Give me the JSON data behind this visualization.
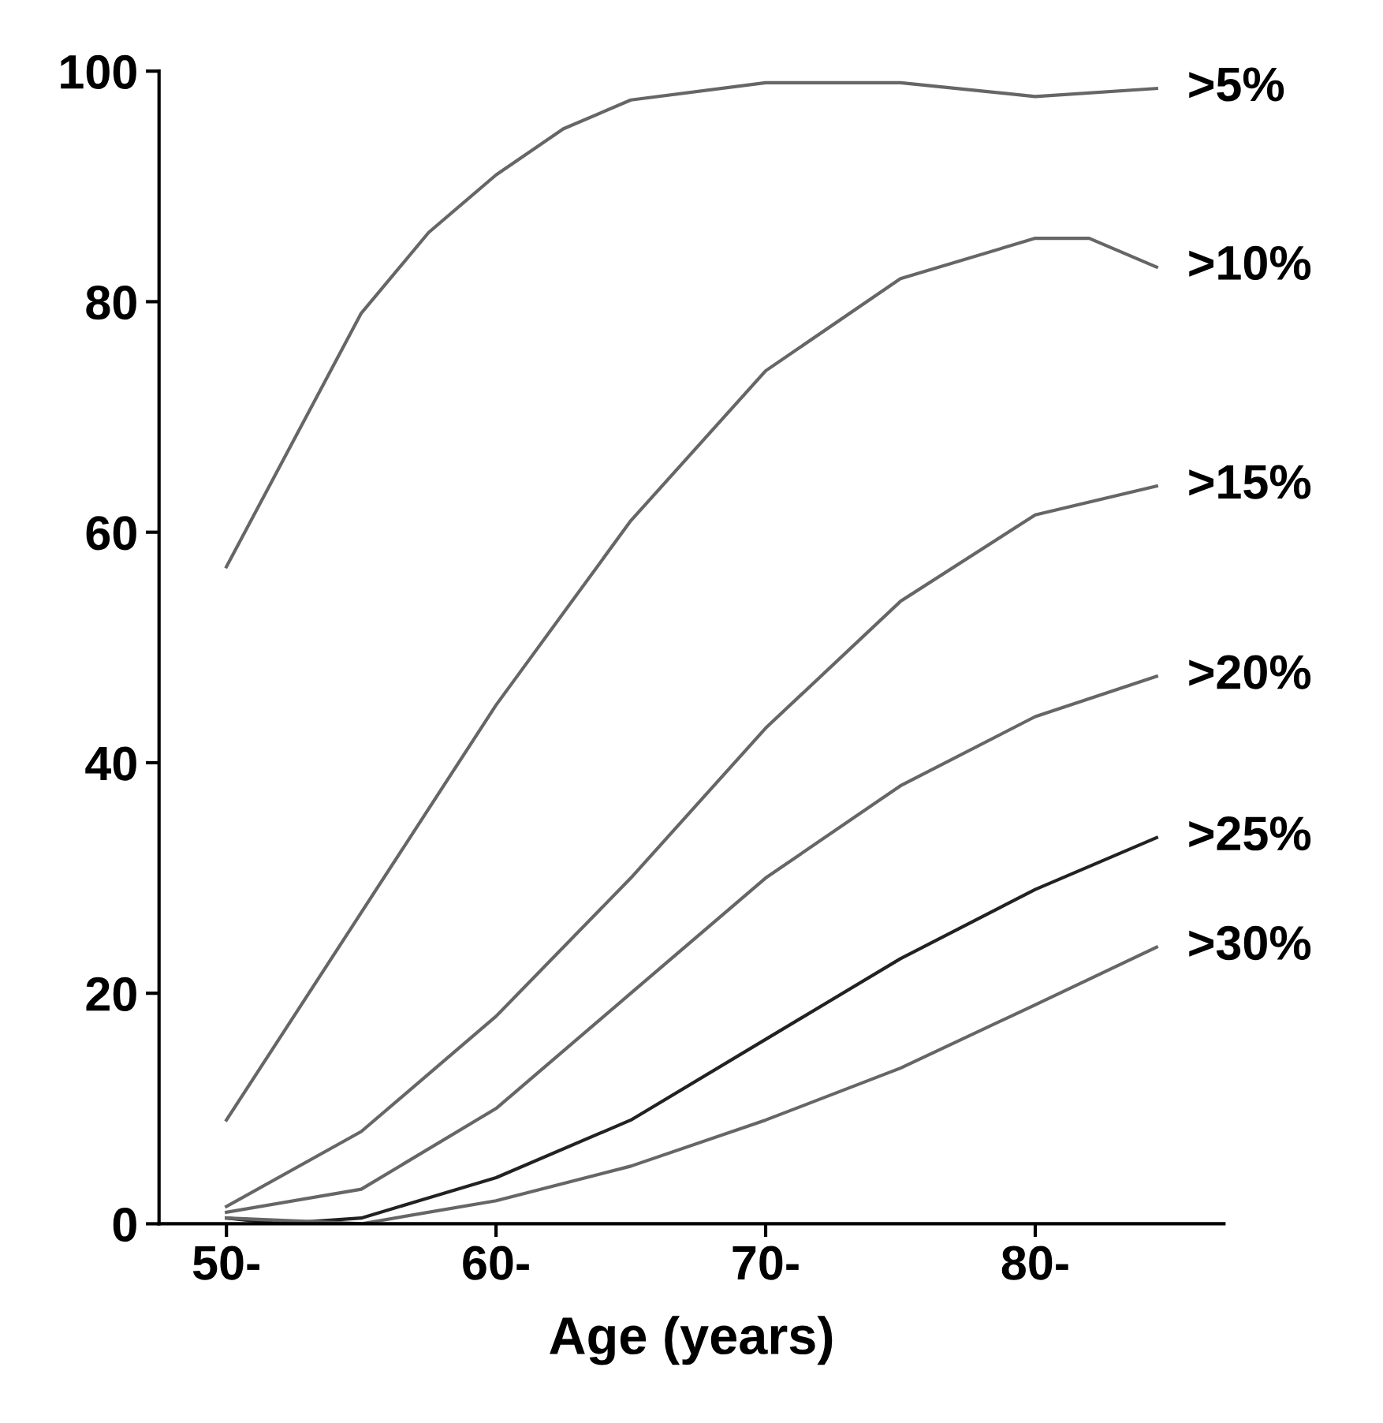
{
  "chart_data": {
    "type": "line",
    "xlabel": "Age (years)",
    "xlim": [
      47.5,
      87
    ],
    "ylim": [
      0,
      100
    ],
    "xticks": [
      {
        "value": 50,
        "label": "50-"
      },
      {
        "value": 60,
        "label": "60-"
      },
      {
        "value": 70,
        "label": "70-"
      },
      {
        "value": 80,
        "label": "80-"
      }
    ],
    "yticks": [
      0,
      20,
      40,
      60,
      80,
      100
    ],
    "grid": false,
    "legend": false,
    "marker": "none",
    "line_style": "solid",
    "series": [
      {
        "name": ">5%",
        "color": "#666666",
        "x": [
          50,
          52.5,
          55,
          57.5,
          60,
          62.5,
          65,
          70,
          75,
          80,
          84.5
        ],
        "values": [
          57,
          68,
          79,
          86,
          91,
          95,
          97.5,
          99,
          99,
          97.8,
          98.5
        ]
      },
      {
        "name": ">10%",
        "color": "#666666",
        "x": [
          50,
          55,
          60,
          65,
          70,
          75,
          80,
          82,
          84.5
        ],
        "values": [
          9,
          27,
          45,
          61,
          74,
          82,
          85.5,
          85.5,
          83
        ]
      },
      {
        "name": ">15%",
        "color": "#666666",
        "x": [
          50,
          55,
          60,
          65,
          70,
          75,
          80,
          84.5
        ],
        "values": [
          1.5,
          8,
          18,
          30,
          43,
          54,
          61.5,
          64
        ]
      },
      {
        "name": ">20%",
        "color": "#666666",
        "x": [
          50,
          55,
          60,
          65,
          70,
          75,
          80,
          84.5
        ],
        "values": [
          1,
          3,
          10,
          20,
          30,
          38,
          44,
          47.5
        ]
      },
      {
        "name": ">25%",
        "color": "#222222",
        "x": [
          50,
          52,
          55,
          60,
          65,
          70,
          75,
          80,
          84.5
        ],
        "values": [
          0.5,
          0,
          0.5,
          4,
          9,
          16,
          23,
          29,
          33.5
        ]
      },
      {
        "name": ">30%",
        "color": "#666666",
        "x": [
          50,
          55,
          60,
          65,
          70,
          75,
          80,
          84.5
        ],
        "values": [
          0.5,
          0,
          2,
          5,
          9,
          13.5,
          19,
          24
        ]
      }
    ]
  }
}
